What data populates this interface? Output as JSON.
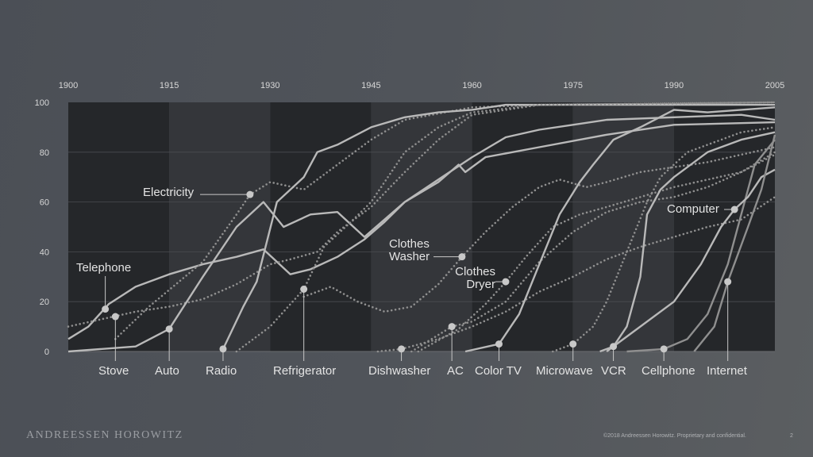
{
  "footer": {
    "brand": "ANDREESSEN HOROWITZ",
    "copyright": "©2018 Andreessen Horowitz. Proprietary and confidential.",
    "page_number": "2"
  },
  "chart_data": {
    "type": "line",
    "title": "",
    "xlabel": "",
    "ylabel": "",
    "xlim": [
      1900,
      2005
    ],
    "ylim": [
      0,
      100
    ],
    "x_ticks": [
      "1900",
      "1915",
      "1930",
      "1945",
      "1960",
      "1975",
      "1990",
      "2005"
    ],
    "y_ticks": [
      "0",
      "20",
      "40",
      "60",
      "80",
      "100"
    ],
    "grid": true,
    "colors": {
      "background_dark": "#25272a",
      "background_light": "#34363a",
      "line_light": "#b9b9b9",
      "line_mid": "#8f8f8f",
      "marker": "#c8c8c8"
    },
    "series": [
      {
        "name": "Telephone",
        "style": "solid",
        "marker": [
          1905.5,
          17
        ],
        "points": [
          [
            1900,
            5
          ],
          [
            1903,
            10
          ],
          [
            1906,
            19
          ],
          [
            1910,
            26
          ],
          [
            1915,
            31
          ],
          [
            1920,
            35
          ],
          [
            1925,
            38
          ],
          [
            1929,
            41
          ],
          [
            1931,
            36
          ],
          [
            1933,
            31
          ],
          [
            1936,
            33
          ],
          [
            1940,
            38
          ],
          [
            1944,
            45
          ],
          [
            1947,
            52
          ],
          [
            1950,
            60
          ],
          [
            1955,
            69
          ],
          [
            1960,
            78
          ],
          [
            1965,
            86
          ],
          [
            1970,
            89
          ],
          [
            1975,
            91
          ],
          [
            1980,
            93
          ],
          [
            1990,
            94
          ],
          [
            2000,
            95
          ],
          [
            2005,
            93
          ]
        ]
      },
      {
        "name": "Stove",
        "style": "dotted",
        "marker": [
          1907,
          14
        ],
        "points": [
          [
            1900,
            10
          ],
          [
            1905,
            13
          ],
          [
            1910,
            16
          ],
          [
            1915,
            18
          ],
          [
            1920,
            21
          ],
          [
            1925,
            27
          ],
          [
            1930,
            35
          ],
          [
            1933,
            37
          ],
          [
            1937,
            40
          ],
          [
            1940,
            48
          ],
          [
            1945,
            58
          ],
          [
            1950,
            72
          ],
          [
            1955,
            85
          ],
          [
            1960,
            95
          ],
          [
            1970,
            99
          ],
          [
            2005,
            100
          ]
        ]
      },
      {
        "name": "Auto",
        "style": "solid",
        "marker": [
          1915,
          9
        ],
        "points": [
          [
            1900,
            0
          ],
          [
            1910,
            2
          ],
          [
            1915,
            9
          ],
          [
            1920,
            30
          ],
          [
            1925,
            50
          ],
          [
            1929,
            60
          ],
          [
            1932,
            50
          ],
          [
            1936,
            55
          ],
          [
            1940,
            56
          ],
          [
            1944,
            46
          ],
          [
            1950,
            60
          ],
          [
            1955,
            68
          ],
          [
            1958,
            75
          ],
          [
            1959,
            72
          ],
          [
            1962,
            78
          ],
          [
            1970,
            82
          ],
          [
            1980,
            87
          ],
          [
            1990,
            91
          ],
          [
            2005,
            92
          ]
        ]
      },
      {
        "name": "Electricity",
        "style": "dotted",
        "marker": [
          1927,
          63
        ],
        "points": [
          [
            1907,
            5
          ],
          [
            1912,
            18
          ],
          [
            1920,
            36
          ],
          [
            1925,
            55
          ],
          [
            1927,
            63
          ],
          [
            1930,
            68
          ],
          [
            1935,
            65
          ],
          [
            1940,
            75
          ],
          [
            1945,
            85
          ],
          [
            1950,
            93
          ],
          [
            1960,
            98
          ],
          [
            1970,
            99
          ],
          [
            2005,
            100
          ]
        ]
      },
      {
        "name": "Radio",
        "style": "solid",
        "marker": [
          1923,
          1
        ],
        "points": [
          [
            1923,
            1
          ],
          [
            1926,
            18
          ],
          [
            1928,
            28
          ],
          [
            1931,
            60
          ],
          [
            1935,
            70
          ],
          [
            1937,
            80
          ],
          [
            1940,
            83
          ],
          [
            1945,
            90
          ],
          [
            1950,
            94
          ],
          [
            1955,
            96
          ],
          [
            1960,
            97
          ],
          [
            1965,
            99
          ],
          [
            2005,
            99
          ]
        ]
      },
      {
        "name": "Refrigerator",
        "style": "dotted",
        "marker": [
          1935,
          25
        ],
        "points": [
          [
            1925,
            0
          ],
          [
            1930,
            10
          ],
          [
            1935,
            25
          ],
          [
            1938,
            42
          ],
          [
            1942,
            52
          ],
          [
            1945,
            60
          ],
          [
            1950,
            80
          ],
          [
            1955,
            90
          ],
          [
            1960,
            96
          ],
          [
            1970,
            99
          ],
          [
            2005,
            100
          ]
        ]
      },
      {
        "name": "Clothes Washer",
        "style": "dotted",
        "marker": [
          1958.5,
          38
        ],
        "points": [
          [
            1935,
            22
          ],
          [
            1939,
            26
          ],
          [
            1943,
            20
          ],
          [
            1947,
            16
          ],
          [
            1951,
            18
          ],
          [
            1955,
            27
          ],
          [
            1958.5,
            38
          ],
          [
            1962,
            48
          ],
          [
            1966,
            58
          ],
          [
            1970,
            66
          ],
          [
            1973,
            69
          ],
          [
            1977,
            66
          ],
          [
            1980,
            68
          ],
          [
            1985,
            72
          ],
          [
            1990,
            74
          ],
          [
            1995,
            76
          ],
          [
            2000,
            79
          ],
          [
            2005,
            82
          ]
        ]
      },
      {
        "name": "Dishwasher",
        "style": "dotted",
        "marker": [
          1949.5,
          1
        ],
        "points": [
          [
            1946,
            0
          ],
          [
            1949.5,
            1
          ],
          [
            1955,
            5
          ],
          [
            1960,
            10
          ],
          [
            1965,
            16
          ],
          [
            1970,
            24
          ],
          [
            1975,
            30
          ],
          [
            1980,
            37
          ],
          [
            1985,
            42
          ],
          [
            1990,
            46
          ],
          [
            1995,
            50
          ],
          [
            2000,
            53
          ],
          [
            2005,
            62
          ]
        ]
      },
      {
        "name": "AC",
        "style": "dotted",
        "marker": [
          1957,
          10
        ],
        "points": [
          [
            1951,
            0
          ],
          [
            1957,
            10
          ],
          [
            1960,
            12
          ],
          [
            1965,
            20
          ],
          [
            1970,
            36
          ],
          [
            1975,
            48
          ],
          [
            1980,
            56
          ],
          [
            1985,
            60
          ],
          [
            1990,
            62
          ],
          [
            1995,
            66
          ],
          [
            2000,
            72
          ],
          [
            2005,
            79
          ]
        ]
      },
      {
        "name": "Clothes Dryer",
        "style": "dotted",
        "marker": [
          1965,
          28
        ],
        "points": [
          [
            1952,
            0
          ],
          [
            1958,
            9
          ],
          [
            1962,
            19
          ],
          [
            1965,
            28
          ],
          [
            1968,
            38
          ],
          [
            1972,
            50
          ],
          [
            1976,
            55
          ],
          [
            1980,
            58
          ],
          [
            1985,
            62
          ],
          [
            1990,
            66
          ],
          [
            2000,
            72
          ],
          [
            2005,
            80
          ]
        ]
      },
      {
        "name": "Color TV",
        "style": "solid",
        "marker": [
          1964,
          3
        ],
        "points": [
          [
            1959,
            0
          ],
          [
            1964,
            3
          ],
          [
            1967,
            15
          ],
          [
            1970,
            35
          ],
          [
            1973,
            55
          ],
          [
            1976,
            68
          ],
          [
            1978,
            75
          ],
          [
            1981,
            85
          ],
          [
            1985,
            90
          ],
          [
            1990,
            97
          ],
          [
            1995,
            96
          ],
          [
            2005,
            98
          ]
        ]
      },
      {
        "name": "Microwave",
        "style": "dotted",
        "marker": [
          1975,
          3
        ],
        "points": [
          [
            1972,
            0
          ],
          [
            1975,
            3
          ],
          [
            1978,
            10
          ],
          [
            1980,
            20
          ],
          [
            1983,
            40
          ],
          [
            1986,
            60
          ],
          [
            1988,
            70
          ],
          [
            1992,
            80
          ],
          [
            2000,
            88
          ],
          [
            2005,
            90
          ]
        ]
      },
      {
        "name": "VCR",
        "style": "solid",
        "marker": [
          1981,
          2
        ],
        "points": [
          [
            1979,
            0
          ],
          [
            1981,
            2
          ],
          [
            1983,
            10
          ],
          [
            1985,
            30
          ],
          [
            1986,
            55
          ],
          [
            1988,
            65
          ],
          [
            1990,
            70
          ],
          [
            1995,
            80
          ],
          [
            2000,
            85
          ],
          [
            2005,
            88
          ]
        ]
      },
      {
        "name": "Cellphone",
        "style": "solid",
        "marker": [
          1988.5,
          1
        ],
        "points": [
          [
            1983,
            0
          ],
          [
            1988.5,
            1
          ],
          [
            1992,
            5
          ],
          [
            1995,
            15
          ],
          [
            1998,
            35
          ],
          [
            2000,
            55
          ],
          [
            2002,
            75
          ],
          [
            2005,
            85
          ]
        ]
      },
      {
        "name": "Computer",
        "style": "solid",
        "marker": [
          1999,
          57
        ],
        "points": [
          [
            1980,
            0
          ],
          [
            1985,
            10
          ],
          [
            1990,
            20
          ],
          [
            1994,
            35
          ],
          [
            1997,
            50
          ],
          [
            1999,
            57
          ],
          [
            2001,
            62
          ],
          [
            2003,
            70
          ],
          [
            2005,
            73
          ]
        ]
      },
      {
        "name": "Internet",
        "style": "solid",
        "marker": [
          1998,
          28
        ],
        "points": [
          [
            1993,
            0
          ],
          [
            1996,
            10
          ],
          [
            1998,
            28
          ],
          [
            2001,
            50
          ],
          [
            2003,
            65
          ],
          [
            2005,
            87
          ]
        ]
      }
    ]
  }
}
